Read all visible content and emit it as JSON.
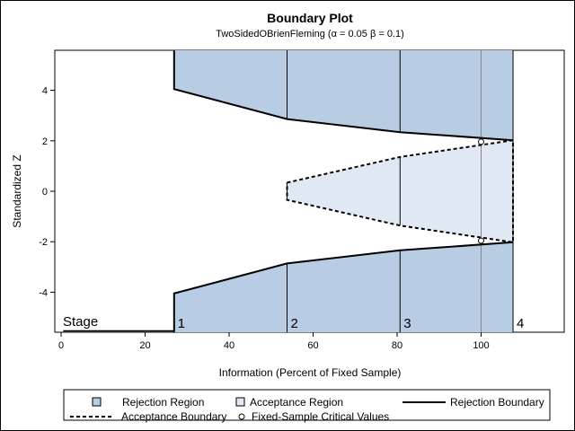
{
  "chart_data": {
    "type": "area",
    "title": "Boundary Plot",
    "subtitle": "TwoSidedOBrienFleming (α = 0.05  β = 0.1)",
    "xlabel": "Information (Percent of Fixed Sample)",
    "ylabel": "Standardized Z",
    "xlim": [
      0,
      118
    ],
    "ylim": [
      -5.6,
      5.6
    ],
    "xticks": [
      0,
      20,
      40,
      60,
      80,
      100
    ],
    "yticks": [
      -4,
      -2,
      0,
      2,
      4
    ],
    "stages": {
      "label": "Stage",
      "numbers": [
        "1",
        "2",
        "3",
        "4"
      ],
      "info": [
        26.9,
        53.8,
        80.7,
        107.6
      ]
    },
    "upper_rejection_boundary": [
      4.05,
      2.86,
      2.34,
      2.02
    ],
    "lower_rejection_boundary": [
      -4.05,
      -2.86,
      -2.34,
      -2.02
    ],
    "upper_acceptance_boundary": [
      null,
      0.34,
      1.36,
      2.02
    ],
    "lower_acceptance_boundary": [
      null,
      -0.34,
      -1.36,
      -2.02
    ],
    "fixed_sample_critical_values": {
      "x": 100,
      "y": [
        1.96,
        -1.96
      ]
    },
    "colors": {
      "rejection_fill": "#b8cce4",
      "acceptance_fill": "#dfe8f3",
      "line": "#000000"
    },
    "legend": {
      "position": "bottom",
      "items": [
        {
          "label": "Rejection Region",
          "symbol": "rejection-square"
        },
        {
          "label": "Acceptance Region",
          "symbol": "acceptance-square"
        },
        {
          "label": "Rejection Boundary",
          "symbol": "solid-line"
        },
        {
          "label": "Acceptance Boundary",
          "symbol": "dashed-line"
        },
        {
          "label": "Fixed-Sample Critical Values",
          "symbol": "circle"
        }
      ]
    }
  }
}
